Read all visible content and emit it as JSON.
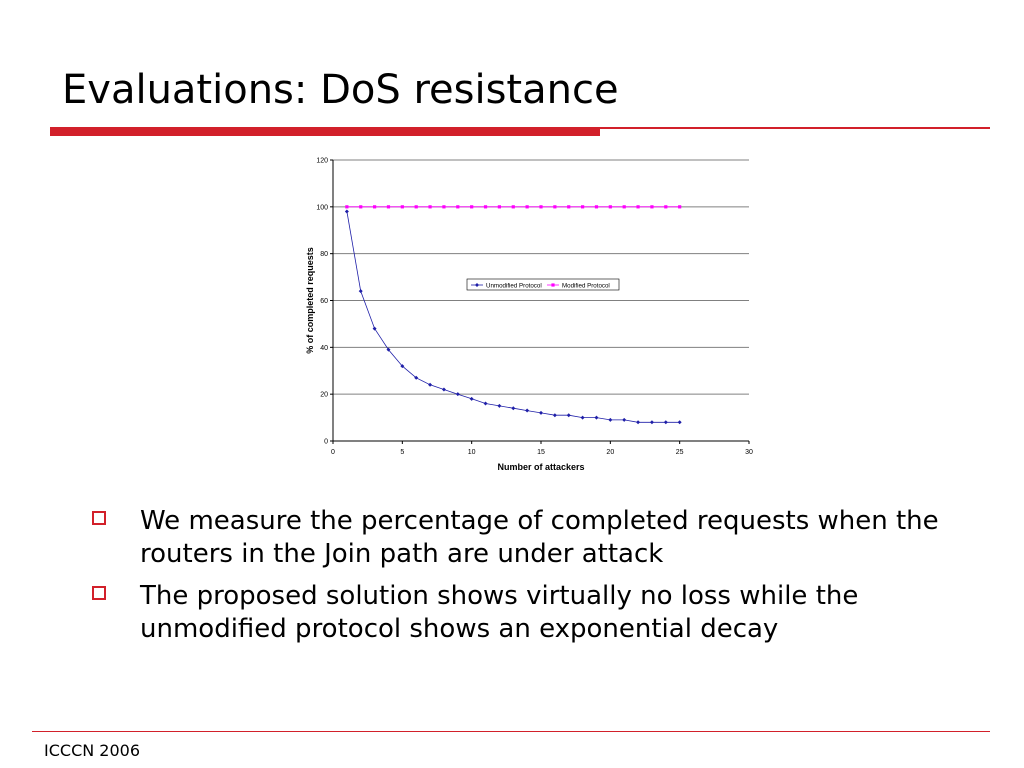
{
  "slide": {
    "title": "Evaluations: DoS resistance",
    "accent_color": "#d2202a",
    "bullets": [
      {
        "text": "We measure the percentage of completed requests when the routers in the Join path are under attack",
        "icon": "hollow-square-bullet-icon"
      },
      {
        "text": "The proposed solution shows virtually no loss while the unmodified protocol shows an exponential decay",
        "icon": "hollow-square-bullet-icon"
      }
    ],
    "footer": "ICCCN 2006"
  },
  "chart_data": {
    "type": "line",
    "title": "",
    "xlabel": "Number of attackers",
    "ylabel": "% of completed requests",
    "xlim": [
      0,
      30
    ],
    "ylim": [
      0,
      120
    ],
    "x_ticks": [
      0,
      5,
      10,
      15,
      20,
      25,
      30
    ],
    "y_ticks": [
      0,
      20,
      40,
      60,
      80,
      100,
      120
    ],
    "grid": "horizontal",
    "legend_position": "center-right",
    "series": [
      {
        "name": "Unmodified Protocol",
        "color": "#1f1fa8",
        "marker": "diamond",
        "x": [
          1,
          2,
          3,
          4,
          5,
          6,
          7,
          8,
          9,
          10,
          11,
          12,
          13,
          14,
          15,
          16,
          17,
          18,
          19,
          20,
          21,
          22,
          23,
          24,
          25
        ],
        "values": [
          98,
          64,
          48,
          39,
          32,
          27,
          24,
          22,
          20,
          18,
          16,
          15,
          14,
          13,
          12,
          11,
          11,
          10,
          10,
          9,
          9,
          8,
          8,
          8,
          8
        ]
      },
      {
        "name": "Modified Protocol",
        "color": "#ff00ff",
        "marker": "square",
        "x": [
          1,
          2,
          3,
          4,
          5,
          6,
          7,
          8,
          9,
          10,
          11,
          12,
          13,
          14,
          15,
          16,
          17,
          18,
          19,
          20,
          21,
          22,
          23,
          24,
          25
        ],
        "values": [
          100,
          100,
          100,
          100,
          100,
          100,
          100,
          100,
          100,
          100,
          100,
          100,
          100,
          100,
          100,
          100,
          100,
          100,
          100,
          100,
          100,
          100,
          100,
          100,
          100
        ]
      }
    ]
  }
}
